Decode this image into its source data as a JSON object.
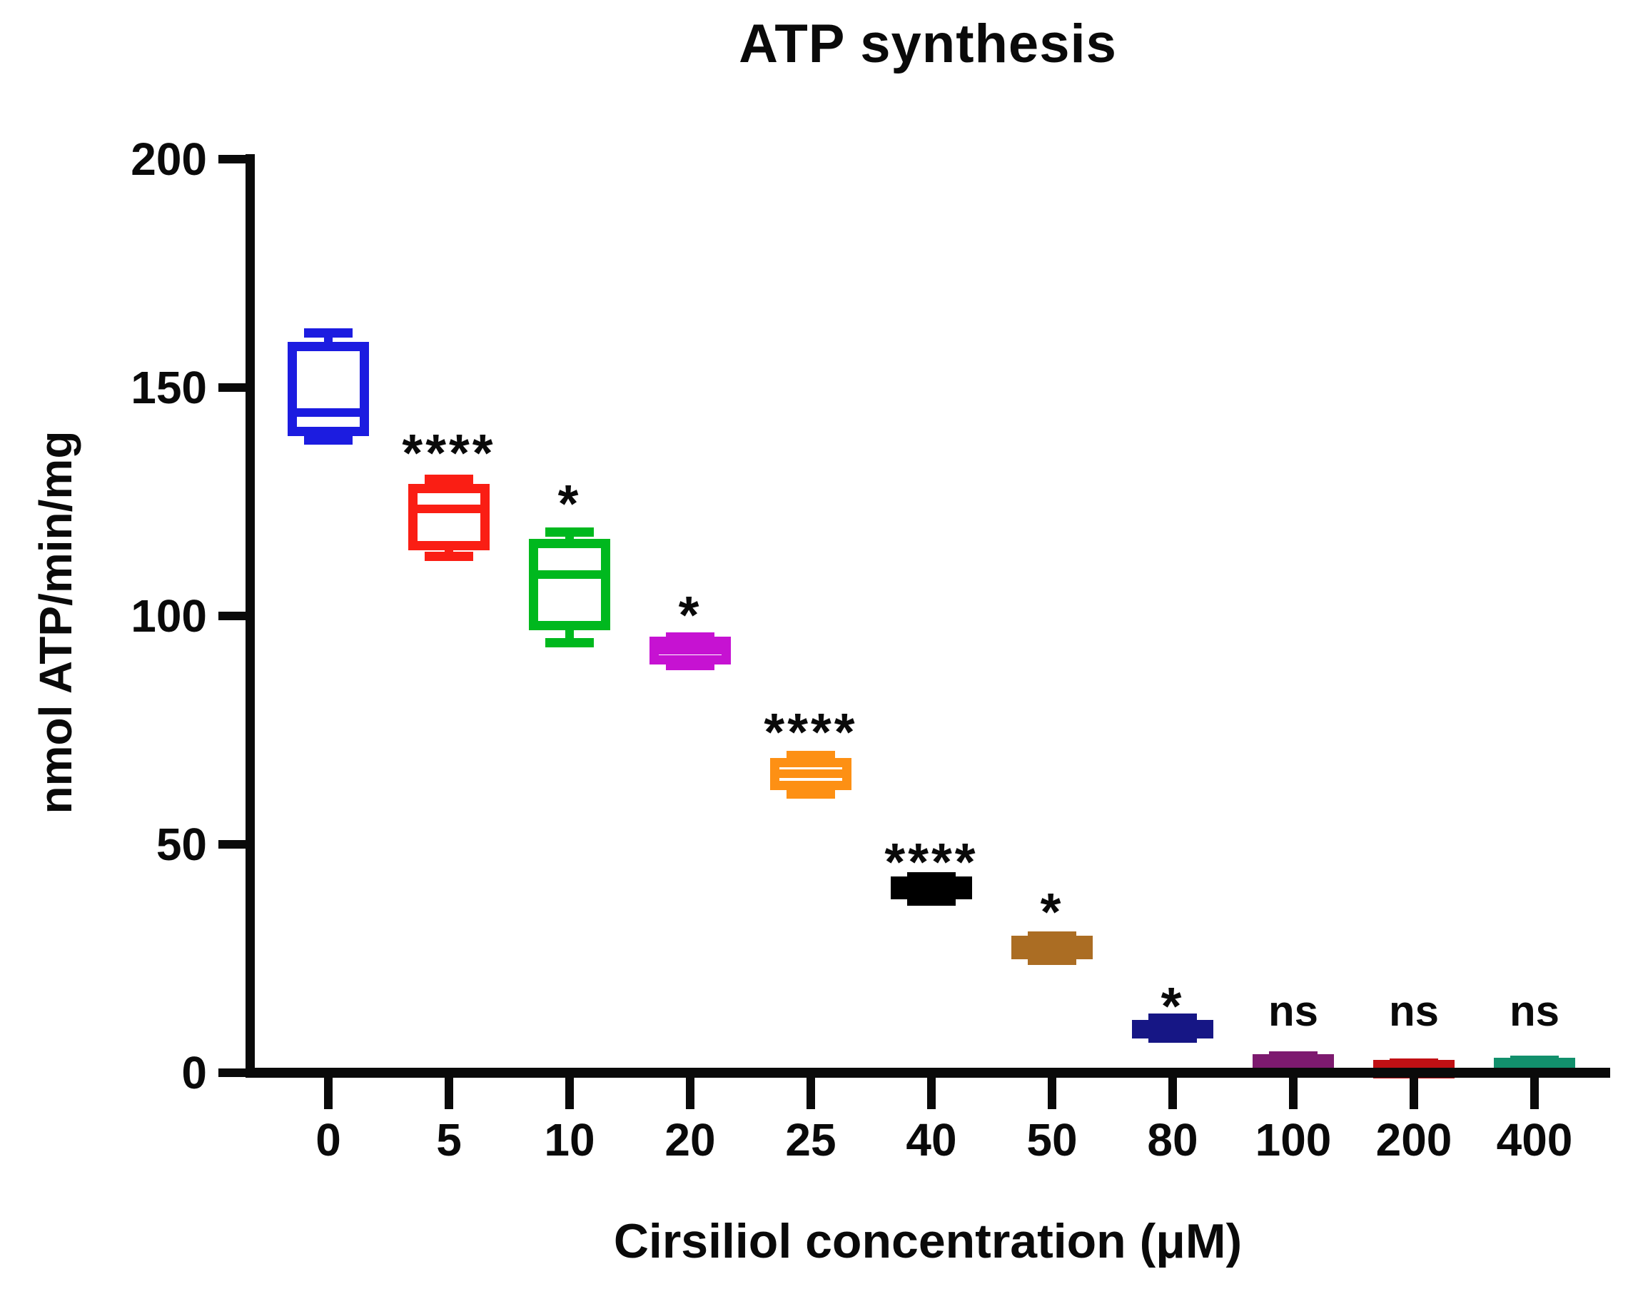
{
  "title": "ATP synthesis",
  "x_axis": {
    "label": "Cirsiliol concentration (μM)"
  },
  "y_axis": {
    "label": "nmol ATP/min/mg"
  },
  "chart_data": {
    "type": "box",
    "title": "ATP synthesis",
    "xlabel": "Cirsiliol concentration (μM)",
    "ylabel": "nmol ATP/min/mg",
    "ylim": [
      0,
      200
    ],
    "yticks": [
      0,
      50,
      100,
      150,
      200
    ],
    "grid": false,
    "legend": "none",
    "categories": [
      "0",
      "5",
      "10",
      "20",
      "25",
      "40",
      "50",
      "80",
      "100",
      "200",
      "400"
    ],
    "boxes": [
      {
        "category": "0",
        "color": "#1c1ce0",
        "whisker_lo": 138.5,
        "q1": 140.5,
        "median": 144.5,
        "q3": 159,
        "whisker_hi": 162,
        "significance": "",
        "sig_y": null
      },
      {
        "category": "5",
        "color": "#fa1e14",
        "whisker_lo": 113,
        "q1": 115.5,
        "median": 123.5,
        "q3": 128,
        "whisker_hi": 130,
        "significance": "****",
        "sig_y": 137
      },
      {
        "category": "10",
        "color": "#00b81e",
        "whisker_lo": 94,
        "q1": 98,
        "median": 109,
        "q3": 116,
        "whisker_hi": 118.5,
        "significance": "*",
        "sig_y": 126
      },
      {
        "category": "20",
        "color": "#c612d2",
        "whisker_lo": 89,
        "q1": 90.5,
        "median": 92.5,
        "q3": 94.5,
        "whisker_hi": 95.5,
        "significance": "*",
        "sig_y": 101.5
      },
      {
        "category": "25",
        "color": "#fd9014",
        "whisker_lo": 61,
        "q1": 63,
        "median": 65.5,
        "q3": 68,
        "whisker_hi": 69.5,
        "significance": "****",
        "sig_y": 76
      },
      {
        "category": "40",
        "color": "#000000",
        "whisker_lo": 37.5,
        "q1": 39,
        "median": 40.5,
        "q3": 42,
        "whisker_hi": 43,
        "significance": "****",
        "sig_y": 47.5
      },
      {
        "category": "50",
        "color": "#ab6d23",
        "whisker_lo": 24.5,
        "q1": 26,
        "median": 27.5,
        "q3": 29,
        "whisker_hi": 30,
        "significance": "*",
        "sig_y": 36.5
      },
      {
        "category": "80",
        "color": "#161685",
        "whisker_lo": 7.5,
        "q1": 8.8,
        "median": 9.7,
        "q3": 10.6,
        "whisker_hi": 12,
        "significance": "*",
        "sig_y": 16
      },
      {
        "category": "100",
        "color": "#7d1a6f",
        "whisker_lo": 0.3,
        "q1": 1,
        "median": 2,
        "q3": 3.2,
        "whisker_hi": 3.8,
        "significance": "ns",
        "sig_y": 13.5
      },
      {
        "category": "200",
        "color": "#c11014",
        "whisker_lo": 0,
        "q1": 0.3,
        "median": 1,
        "q3": 1.8,
        "whisker_hi": 2.2,
        "significance": "ns",
        "sig_y": 13.5
      },
      {
        "category": "400",
        "color": "#12906c",
        "whisker_lo": 0.3,
        "q1": 0.8,
        "median": 1.5,
        "q3": 2.4,
        "whisker_hi": 2.8,
        "significance": "ns",
        "sig_y": 13.5
      }
    ]
  }
}
